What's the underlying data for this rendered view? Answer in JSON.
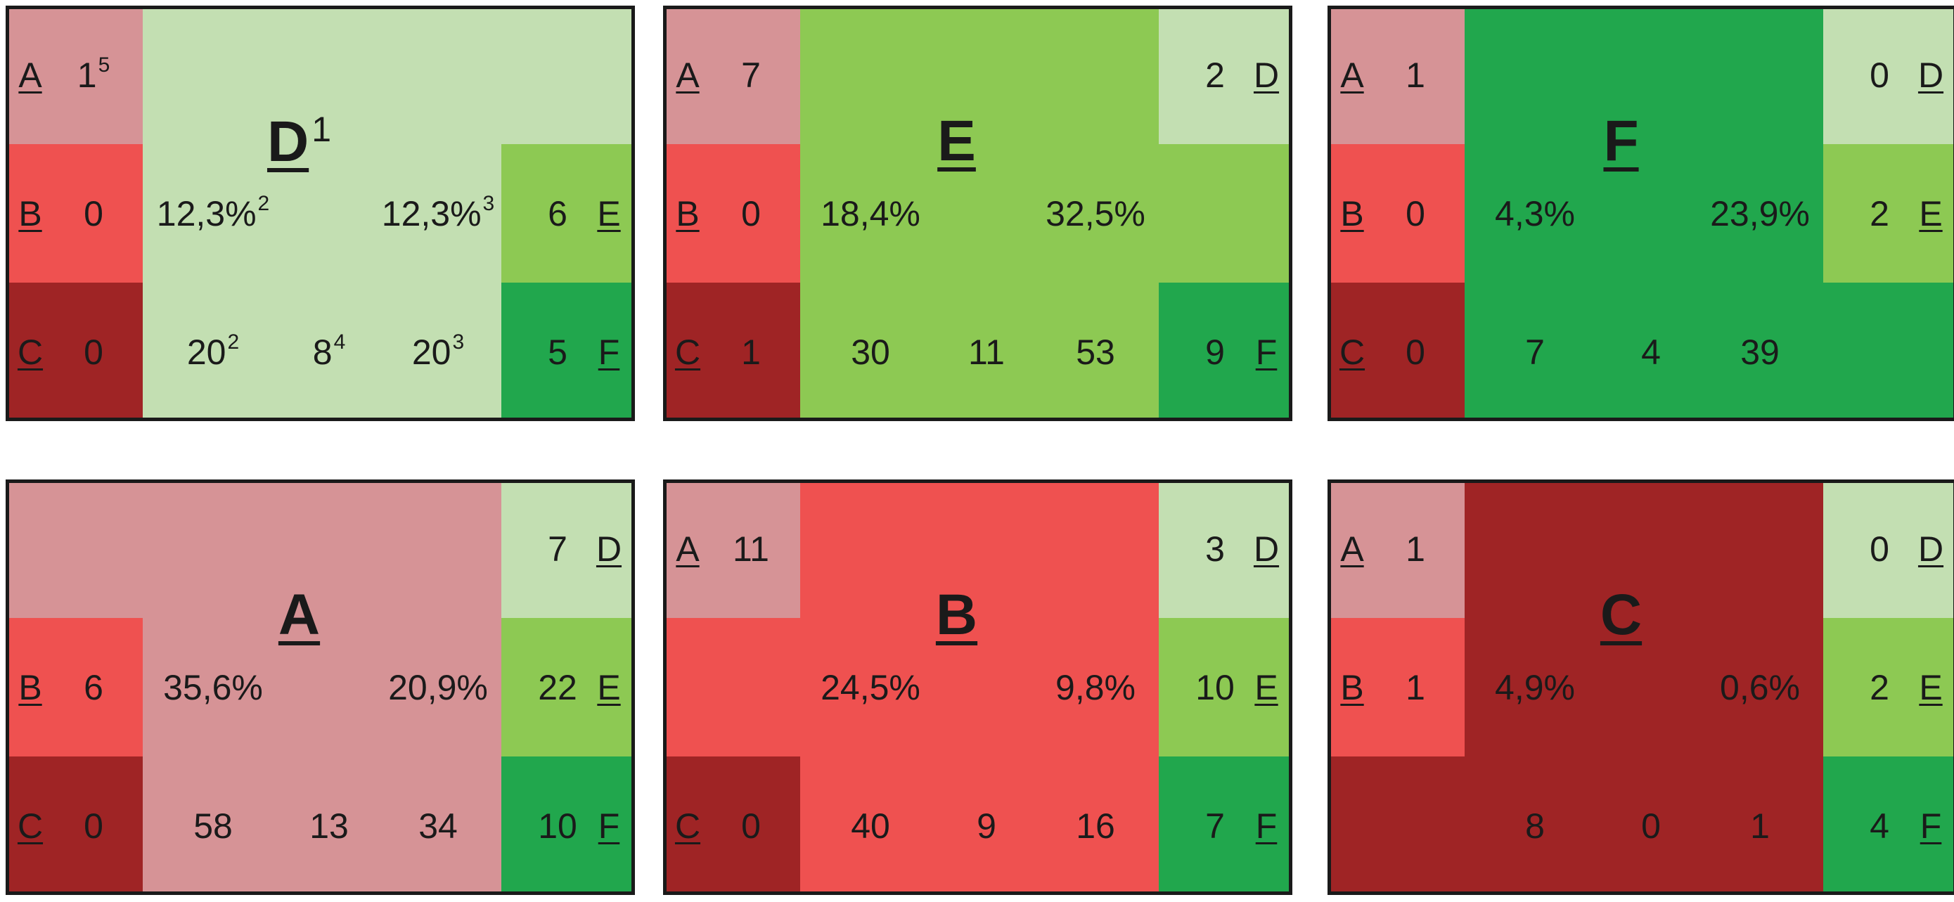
{
  "colors": {
    "A": "#d69396",
    "B": "#ef5150",
    "C": "#9f2425",
    "D": "#c3dfb2",
    "E": "#8dc953",
    "F": "#21a74d"
  },
  "panels": [
    {
      "id": "D",
      "title": "D",
      "title_sup": "1",
      "row": 0,
      "col": 0,
      "pct_left": "12,3%",
      "pct_left_sup": "2",
      "pct_right": "12,3%",
      "pct_right_sup": "3",
      "count_left": "20",
      "count_left_sup": "2",
      "count_mid": "8",
      "count_mid_sup": "4",
      "count_right": "20",
      "count_right_sup": "3",
      "neighbors": {
        "A": {
          "value": "1",
          "sup": "5"
        },
        "B": {
          "value": "0",
          "sup": ""
        },
        "C": {
          "value": "0",
          "sup": ""
        },
        "E": {
          "value": "6",
          "sup": ""
        },
        "F": {
          "value": "5",
          "sup": ""
        }
      }
    },
    {
      "id": "E",
      "title": "E",
      "title_sup": "",
      "row": 0,
      "col": 1,
      "pct_left": "18,4%",
      "pct_left_sup": "",
      "pct_right": "32,5%",
      "pct_right_sup": "",
      "count_left": "30",
      "count_left_sup": "",
      "count_mid": "11",
      "count_mid_sup": "",
      "count_right": "53",
      "count_right_sup": "",
      "neighbors": {
        "A": {
          "value": "7",
          "sup": ""
        },
        "B": {
          "value": "0",
          "sup": ""
        },
        "C": {
          "value": "1",
          "sup": ""
        },
        "D": {
          "value": "2",
          "sup": ""
        },
        "F": {
          "value": "9",
          "sup": ""
        }
      }
    },
    {
      "id": "F",
      "title": "F",
      "title_sup": "",
      "row": 0,
      "col": 2,
      "pct_left": "4,3%",
      "pct_left_sup": "",
      "pct_right": "23,9%",
      "pct_right_sup": "",
      "count_left": "7",
      "count_left_sup": "",
      "count_mid": "4",
      "count_mid_sup": "",
      "count_right": "39",
      "count_right_sup": "",
      "neighbors": {
        "A": {
          "value": "1",
          "sup": ""
        },
        "B": {
          "value": "0",
          "sup": ""
        },
        "C": {
          "value": "0",
          "sup": ""
        },
        "D": {
          "value": "0",
          "sup": ""
        },
        "E": {
          "value": "2",
          "sup": ""
        }
      }
    },
    {
      "id": "A",
      "title": "A",
      "title_sup": "",
      "row": 1,
      "col": 0,
      "pct_left": "35,6%",
      "pct_left_sup": "",
      "pct_right": "20,9%",
      "pct_right_sup": "",
      "count_left": "58",
      "count_left_sup": "",
      "count_mid": "13",
      "count_mid_sup": "",
      "count_right": "34",
      "count_right_sup": "",
      "neighbors": {
        "B": {
          "value": "6",
          "sup": ""
        },
        "C": {
          "value": "0",
          "sup": ""
        },
        "D": {
          "value": "7",
          "sup": ""
        },
        "E": {
          "value": "22",
          "sup": ""
        },
        "F": {
          "value": "10",
          "sup": ""
        }
      }
    },
    {
      "id": "B",
      "title": "B",
      "title_sup": "",
      "row": 1,
      "col": 1,
      "pct_left": "24,5%",
      "pct_left_sup": "",
      "pct_right": "9,8%",
      "pct_right_sup": "",
      "count_left": "40",
      "count_left_sup": "",
      "count_mid": "9",
      "count_mid_sup": "",
      "count_right": "16",
      "count_right_sup": "",
      "neighbors": {
        "A": {
          "value": "11",
          "sup": ""
        },
        "C": {
          "value": "0",
          "sup": ""
        },
        "D": {
          "value": "3",
          "sup": ""
        },
        "E": {
          "value": "10",
          "sup": ""
        },
        "F": {
          "value": "7",
          "sup": ""
        }
      }
    },
    {
      "id": "C",
      "title": "C",
      "title_sup": "",
      "row": 1,
      "col": 2,
      "pct_left": "4,9%",
      "pct_left_sup": "",
      "pct_right": "0,6%",
      "pct_right_sup": "",
      "count_left": "8",
      "count_left_sup": "",
      "count_mid": "0",
      "count_mid_sup": "",
      "count_right": "1",
      "count_right_sup": "",
      "neighbors": {
        "A": {
          "value": "1",
          "sup": ""
        },
        "B": {
          "value": "1",
          "sup": ""
        },
        "D": {
          "value": "0",
          "sup": ""
        },
        "E": {
          "value": "2",
          "sup": ""
        },
        "F": {
          "value": "4",
          "sup": ""
        }
      }
    }
  ]
}
